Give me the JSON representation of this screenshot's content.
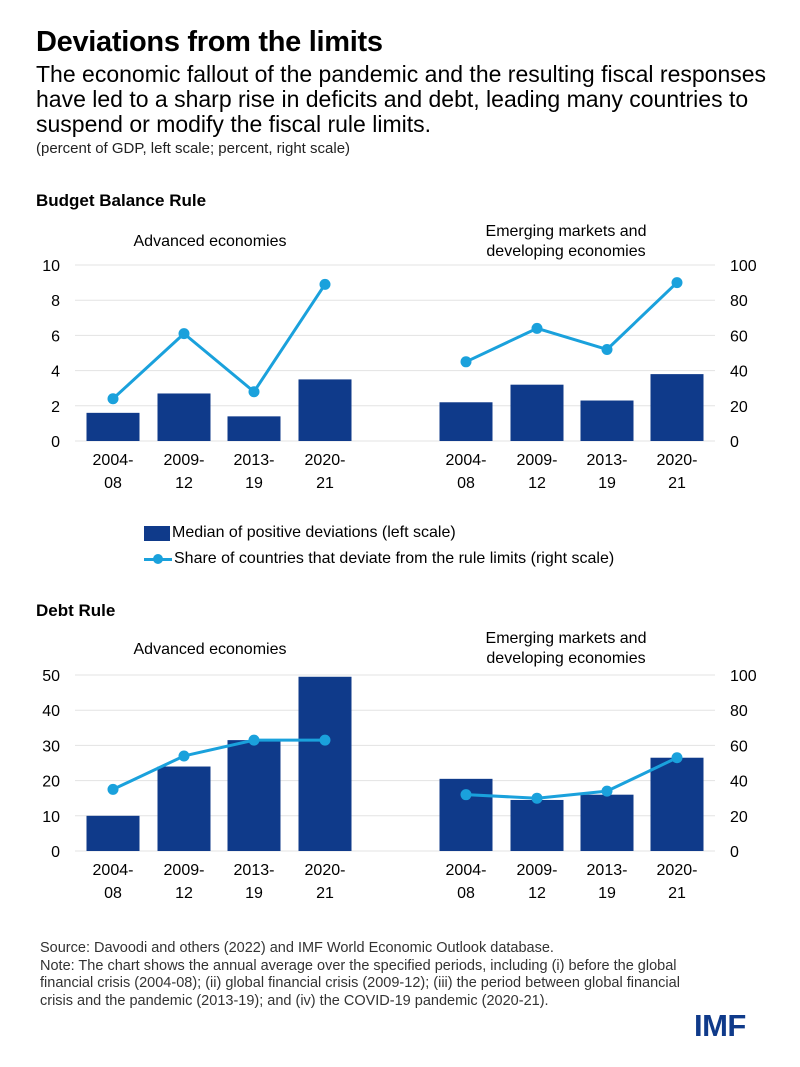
{
  "title": "Deviations from the limits",
  "subtitle": "The economic fallout of the pandemic and the resulting fiscal responses have led to a sharp rise in deficits and debt, leading many countries to suspend or modify the fiscal rule limits.",
  "units": "(percent of GDP, left scale; percent, right scale)",
  "legend": {
    "bar": "Median of positive deviations (left scale)",
    "line": "Share of countries that deviate from the rule limits (right scale)"
  },
  "colors": {
    "bar": "#0f3a8a",
    "line": "#1aa1dc",
    "grid": "#e3e3e3"
  },
  "footnote": {
    "source": "Source: Davoodi and others (2022) and IMF World Economic Outlook database.",
    "note": "Note: The chart shows the annual average over the specified periods, including (i) before the global financial crisis (2004-08); (ii) global financial crisis (2009-12); (iii) the period between global financial crisis and the pandemic (2013-19); and (iv) the COVID-19 pandemic (2020-21)."
  },
  "logo": "IMF",
  "chart_data": [
    {
      "section": "Budget Balance Rule",
      "type": "bar",
      "left_ticks": [
        "0",
        "2",
        "4",
        "6",
        "8",
        "10"
      ],
      "right_ticks": [
        "0",
        "20",
        "40",
        "60",
        "80",
        "100"
      ],
      "ylim_left": [
        0,
        10
      ],
      "ylim_right": [
        0,
        100
      ],
      "grid": true,
      "groups": [
        {
          "label": "Advanced economies",
          "categories": [
            [
              "2004-",
              "08"
            ],
            [
              "2009-",
              "12"
            ],
            [
              "2013-",
              "19"
            ],
            [
              "2020-",
              "21"
            ]
          ],
          "bar_values": [
            1.6,
            2.7,
            1.4,
            3.5
          ],
          "line_values": [
            24,
            61,
            28,
            89
          ]
        },
        {
          "label": "Emerging markets and developing economies",
          "categories": [
            [
              "2004-",
              "08"
            ],
            [
              "2009-",
              "12"
            ],
            [
              "2013-",
              "19"
            ],
            [
              "2020-",
              "21"
            ]
          ],
          "bar_values": [
            2.2,
            3.2,
            2.3,
            3.8
          ],
          "line_values": [
            45,
            64,
            52,
            90
          ]
        }
      ]
    },
    {
      "section": "Debt Rule",
      "type": "bar",
      "left_ticks": [
        "0",
        "10",
        "20",
        "30",
        "40",
        "50"
      ],
      "right_ticks": [
        "0",
        "20",
        "40",
        "60",
        "80",
        "100"
      ],
      "ylim_left": [
        0,
        50
      ],
      "ylim_right": [
        0,
        100
      ],
      "grid": true,
      "groups": [
        {
          "label": "Advanced economies",
          "categories": [
            [
              "2004-",
              "08"
            ],
            [
              "2009-",
              "12"
            ],
            [
              "2013-",
              "19"
            ],
            [
              "2020-",
              "21"
            ]
          ],
          "bar_values": [
            10,
            24,
            31.5,
            49.5
          ],
          "line_values": [
            35,
            54,
            63,
            63
          ]
        },
        {
          "label": "Emerging markets and developing economies",
          "categories": [
            [
              "2004-",
              "08"
            ],
            [
              "2009-",
              "12"
            ],
            [
              "2013-",
              "19"
            ],
            [
              "2020-",
              "21"
            ]
          ],
          "bar_values": [
            20.5,
            14.5,
            16,
            26.5
          ],
          "line_values": [
            32,
            30,
            34,
            53
          ]
        }
      ]
    }
  ]
}
